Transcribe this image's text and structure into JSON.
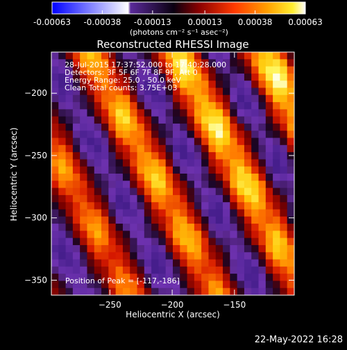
{
  "chart_data": {
    "type": "heatmap",
    "title": "Reconstructed RHESSI Image",
    "xlabel": "Heliocentric X (arcsec)",
    "ylabel": "Heliocentric Y (arcsec)",
    "xlim": [
      -297,
      -102
    ],
    "ylim": [
      -362,
      -167
    ],
    "x_ticks": [
      -250,
      -200,
      -150
    ],
    "y_ticks": [
      -200,
      -250,
      -300,
      -350
    ],
    "colorbar": {
      "min": -0.00063,
      "max": 0.00063,
      "tick_values": [
        -0.00063,
        -0.00038,
        -0.00013,
        0.00013,
        0.00038,
        0.00063
      ],
      "tick_labels": [
        "-0.00063",
        "-0.00038",
        "-0.00013",
        "0.00013",
        "0.00038",
        "0.00063"
      ],
      "unit_label": "(photons cm⁻² s⁻¹ asec⁻²)",
      "colormap": [
        "#0000ff",
        "#ffffff",
        "#3a1a6e",
        "#000000",
        "#a00000",
        "#ff3000",
        "#ff9000",
        "#ffe000",
        "#ffffd0"
      ]
    },
    "annotations": [
      "28-Jul-2015 17:37:52.000 to 17:40:28.000",
      "Detectors: 3F 5F 6F 7F 8F 9F, Att 0",
      "Energy Range: 25.0 - 50.0 keV",
      "Clean    Total counts: 3.75E+03"
    ],
    "peak_label": "Position of Peak = [-117,-186]",
    "peak": [
      -117,
      -186
    ],
    "pattern": {
      "description_values": "diagonal fringe bands in data units",
      "band_spacing_arcsec": 62,
      "band_angle_deg": -62,
      "peak_value": 0.00063,
      "min_value": -0.00028
    }
  },
  "footer": {
    "timestamp": "22-May-2022 16:28"
  }
}
